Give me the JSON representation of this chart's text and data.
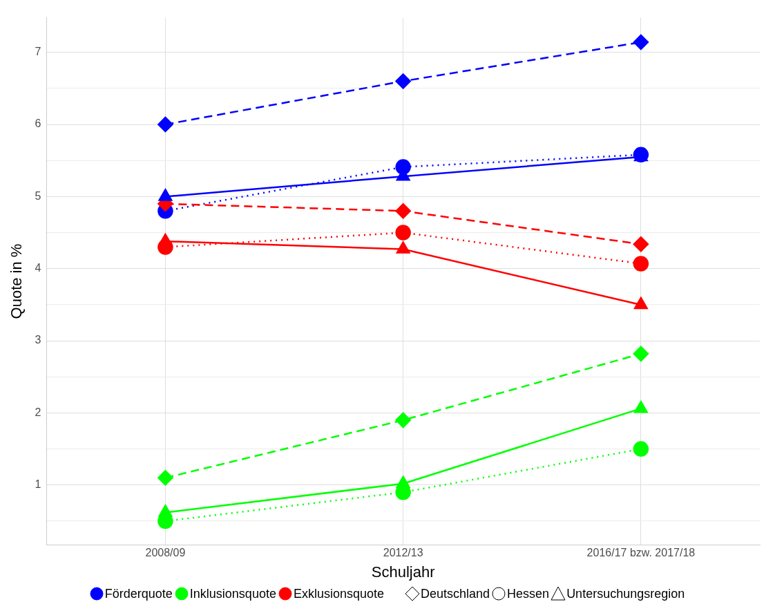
{
  "chart_data": {
    "type": "line",
    "xlabel": "Schuljahr",
    "ylabel": "Quote in %",
    "categories": [
      "2008/09",
      "2012/13",
      "2016/17 bzw. 2017/18"
    ],
    "ylim": [
      0.17,
      7.48
    ],
    "yticks": [
      {
        "value": 0.5,
        "label": null
      },
      1,
      {
        "value": 1.5,
        "label": null
      },
      2,
      {
        "value": 2.5,
        "label": null
      },
      3,
      {
        "value": 3.5,
        "label": null
      },
      4,
      {
        "value": 4.5,
        "label": null
      },
      5,
      {
        "value": 5.5,
        "label": null
      },
      6,
      {
        "value": 6.5,
        "label": null
      },
      7
    ],
    "grid": true,
    "series": [
      {
        "color": "#0000ff",
        "marker": "diamond",
        "line_style": "dashed",
        "values": [
          6.0,
          6.6,
          7.14
        ]
      },
      {
        "color": "#0000ff",
        "marker": "circle",
        "line_style": "dotted",
        "values": [
          4.8,
          5.41,
          5.58
        ]
      },
      {
        "color": "#0000ff",
        "marker": "triangle",
        "line_style": "solid",
        "values": [
          5.0,
          5.28,
          5.55
        ]
      },
      {
        "color": "#00ff00",
        "marker": "diamond",
        "line_style": "dashed",
        "values": [
          1.1,
          1.9,
          2.82
        ]
      },
      {
        "color": "#00ff00",
        "marker": "circle",
        "line_style": "dotted",
        "values": [
          0.5,
          0.9,
          1.5
        ]
      },
      {
        "color": "#00ff00",
        "marker": "triangle",
        "line_style": "solid",
        "values": [
          0.62,
          1.02,
          2.06
        ]
      },
      {
        "color": "#ff0000",
        "marker": "diamond",
        "line_style": "dashed",
        "values": [
          4.9,
          4.8,
          4.34
        ]
      },
      {
        "color": "#ff0000",
        "marker": "circle",
        "line_style": "dotted",
        "values": [
          4.3,
          4.5,
          4.07
        ]
      },
      {
        "color": "#ff0000",
        "marker": "triangle",
        "line_style": "solid",
        "values": [
          4.38,
          4.27,
          3.5
        ]
      }
    ],
    "annotations": [
      "Förderquote",
      "Inklusionsquote",
      "Exklusionsquote",
      "Deutschland",
      "Hessen",
      "Untersuchungsregion"
    ]
  }
}
